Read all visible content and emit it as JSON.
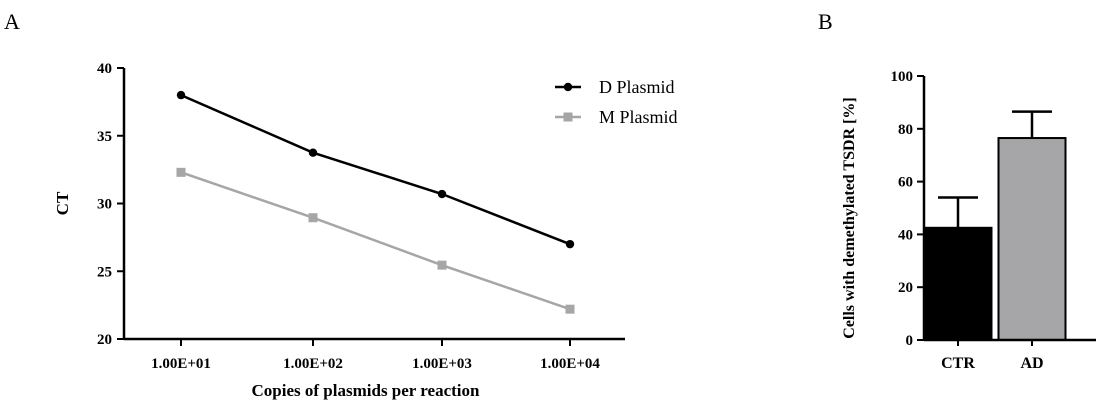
{
  "panels": {
    "a_label": "A",
    "b_label": "B"
  },
  "chart_data": [
    {
      "type": "line",
      "title": "",
      "xlabel": "Copies of plasmids per reaction",
      "ylabel": "CT",
      "categories": [
        "1.00E+01",
        "1.00E+02",
        "1.00E+03",
        "1.00E+04"
      ],
      "ylim": [
        20,
        40
      ],
      "yticks": [
        20,
        25,
        30,
        35,
        40
      ],
      "legend_position": "top-right",
      "grid": false,
      "series": [
        {
          "name": "D Plasmid",
          "values": [
            38.0,
            33.75,
            30.7,
            27.0
          ],
          "color": "#000000",
          "marker": "circle"
        },
        {
          "name": "M Plasmid",
          "values": [
            32.3,
            28.95,
            25.45,
            22.2
          ],
          "color": "#a6a6a8",
          "marker": "square"
        }
      ]
    },
    {
      "type": "bar",
      "title": "",
      "xlabel": "",
      "ylabel": "Cells with demethylated  TSDR [%]",
      "categories": [
        "CTR",
        "AD"
      ],
      "values": [
        42.5,
        76.5
      ],
      "errors": [
        11.5,
        10.0
      ],
      "colors": [
        "#000000",
        "#a6a6a8"
      ],
      "ylim": [
        0,
        100
      ],
      "yticks": [
        0,
        20,
        40,
        60,
        80,
        100
      ],
      "grid": false
    }
  ]
}
